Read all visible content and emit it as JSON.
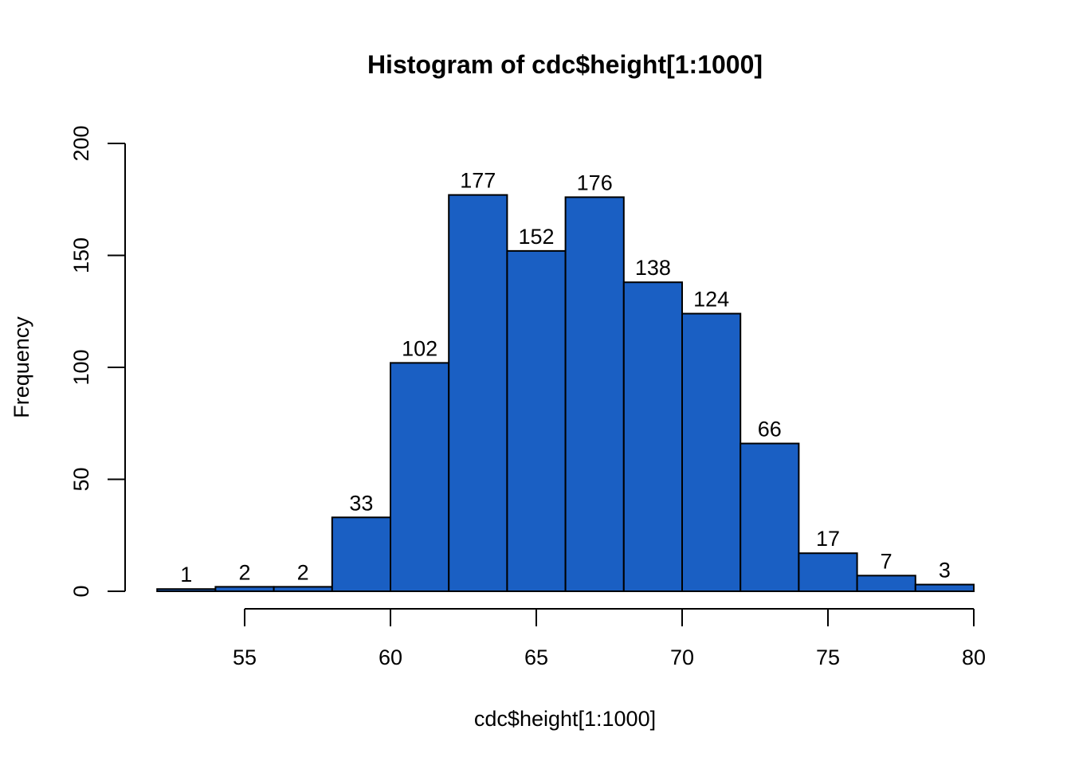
{
  "chart_data": {
    "type": "bar",
    "title": "Histogram of cdc$height[1:1000]",
    "xlabel": "cdc$height[1:1000]",
    "ylabel": "Frequency",
    "bar_color": "#1A5FC3",
    "bins": [
      {
        "from": 52,
        "to": 54,
        "count": 1
      },
      {
        "from": 54,
        "to": 56,
        "count": 2
      },
      {
        "from": 56,
        "to": 58,
        "count": 2
      },
      {
        "from": 58,
        "to": 60,
        "count": 33
      },
      {
        "from": 60,
        "to": 62,
        "count": 102
      },
      {
        "from": 62,
        "to": 64,
        "count": 177
      },
      {
        "from": 64,
        "to": 66,
        "count": 152
      },
      {
        "from": 66,
        "to": 68,
        "count": 176
      },
      {
        "from": 68,
        "to": 70,
        "count": 138
      },
      {
        "from": 70,
        "to": 72,
        "count": 124
      },
      {
        "from": 72,
        "to": 74,
        "count": 66
      },
      {
        "from": 74,
        "to": 76,
        "count": 17
      },
      {
        "from": 76,
        "to": 78,
        "count": 7
      },
      {
        "from": 78,
        "to": 80,
        "count": 3
      }
    ],
    "xticks": [
      55,
      60,
      65,
      70,
      75,
      80
    ],
    "yticks": [
      0,
      50,
      100,
      150,
      200
    ],
    "xlim": [
      55,
      80
    ],
    "ylim": [
      0,
      200
    ],
    "grid": false,
    "legend": "none"
  }
}
